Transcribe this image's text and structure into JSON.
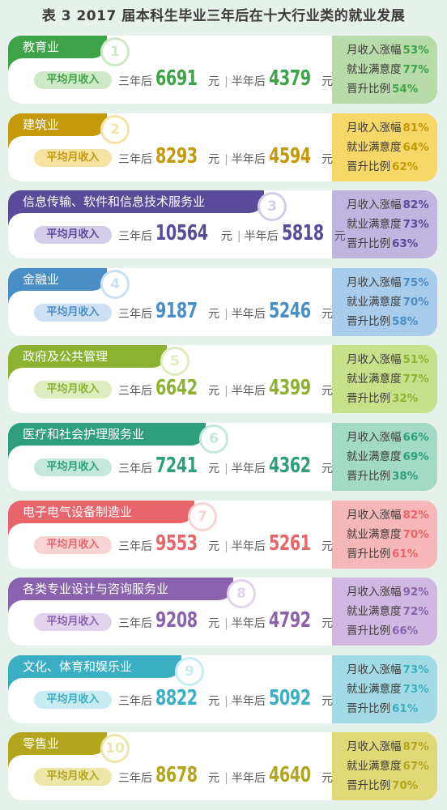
{
  "title": "表 3 2017 届本科生毕业三年后在十大行业类的就业发展",
  "labels": {
    "pill": "平均月收入",
    "after3": "三年后",
    "after_half": "半年后",
    "unit": "元",
    "sep": "|",
    "income_growth": "月收入涨幅",
    "satisfaction": "就业满意度",
    "promotion": "晋升比例",
    "percent": "%"
  },
  "industries": [
    {
      "rank": "1",
      "name": "教育业",
      "income3": "6691",
      "income_half": "4379",
      "growth": "53",
      "satisfaction": "77",
      "promotion": "54",
      "color": "#3fa349",
      "soft": "#cfe8c8",
      "panel": "#b7dba9"
    },
    {
      "rank": "2",
      "name": "建筑业",
      "income3": "8293",
      "income_half": "4594",
      "growth": "81",
      "satisfaction": "64",
      "promotion": "62",
      "color": "#c49a0a",
      "soft": "#f6e3a4",
      "panel": "#f5d868"
    },
    {
      "rank": "3",
      "name": "信息传输、软件和信息技术服务业",
      "income3": "10564",
      "income_half": "5818",
      "growth": "82",
      "satisfaction": "73",
      "promotion": "63",
      "color": "#5a4a9a",
      "soft": "#d4cdea",
      "panel": "#c0b5e0"
    },
    {
      "rank": "4",
      "name": "金融业",
      "income3": "9187",
      "income_half": "5246",
      "growth": "75",
      "satisfaction": "70",
      "promotion": "58",
      "color": "#4a8ec8",
      "soft": "#cce0f2",
      "panel": "#a8cdec"
    },
    {
      "rank": "5",
      "name": "政府及公共管理",
      "income3": "6642",
      "income_half": "4399",
      "growth": "51",
      "satisfaction": "77",
      "promotion": "32",
      "color": "#8bb331",
      "soft": "#dfecbf",
      "panel": "#c9e08a"
    },
    {
      "rank": "6",
      "name": "医疗和社会护理服务业",
      "income3": "7241",
      "income_half": "4362",
      "growth": "66",
      "satisfaction": "69",
      "promotion": "38",
      "color": "#2e9f7d",
      "soft": "#c5e8dc",
      "panel": "#a3dac6"
    },
    {
      "rank": "7",
      "name": "电子电气设备制造业",
      "income3": "9553",
      "income_half": "5261",
      "growth": "82",
      "satisfaction": "70",
      "promotion": "61",
      "color": "#e7656b",
      "soft": "#f8d3d3",
      "panel": "#f5b7b7"
    },
    {
      "rank": "8",
      "name": "各类专业设计与咨询服务业",
      "income3": "9208",
      "income_half": "4792",
      "growth": "92",
      "satisfaction": "72",
      "promotion": "66",
      "color": "#8a62ad",
      "soft": "#e1d3ec",
      "panel": "#cfb9e2"
    },
    {
      "rank": "9",
      "name": "文化、体育和娱乐业",
      "income3": "8822",
      "income_half": "5092",
      "growth": "73",
      "satisfaction": "73",
      "promotion": "61",
      "color": "#3aaec2",
      "soft": "#c8ebf0",
      "panel": "#a2dbe6"
    },
    {
      "rank": "10",
      "name": "零售业",
      "income3": "8678",
      "income_half": "4640",
      "growth": "87",
      "satisfaction": "67",
      "promotion": "70",
      "color": "#b3a51d",
      "soft": "#ece6a8",
      "panel": "#e1d977"
    }
  ]
}
